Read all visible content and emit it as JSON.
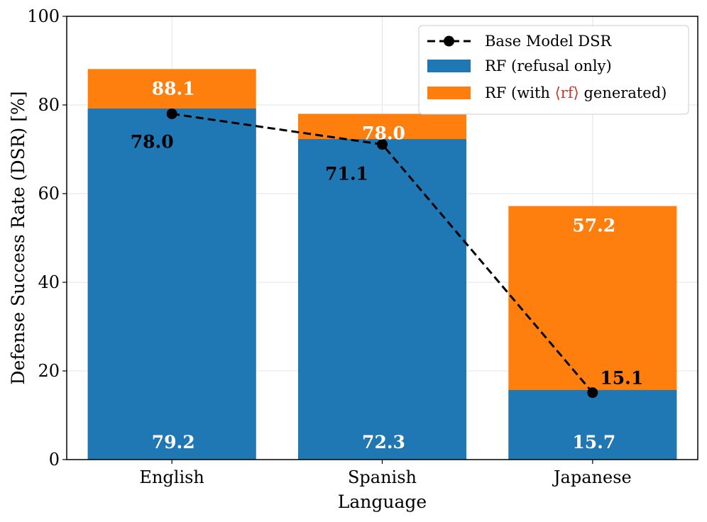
{
  "chart_data": {
    "type": "bar",
    "stacked": true,
    "title": "",
    "xlabel": "Language",
    "ylabel": "Defense Success Rate (DSR) [%]",
    "ylim": [
      0,
      100
    ],
    "yticks": [
      0,
      20,
      40,
      60,
      80,
      100
    ],
    "grid": true,
    "legend_position": "top-right",
    "categories": [
      "English",
      "Spanish",
      "Japanese"
    ],
    "series": [
      {
        "name": "RF (refusal only)",
        "kind": "bar",
        "color": "#1f77b4",
        "values": [
          79.2,
          72.3,
          15.7
        ],
        "labels": [
          "79.2",
          "72.3",
          "15.7"
        ],
        "label_color": "#ffffff"
      },
      {
        "name": "RF (with ⟨rf⟩ generated)",
        "name_parts": {
          "prefix": "RF (with ",
          "token": "⟨rf⟩",
          "suffix": " generated)",
          "token_color": "#c0392b"
        },
        "kind": "bar",
        "color": "#ff7f0e",
        "totals": [
          88.1,
          78.0,
          57.2
        ],
        "labels": [
          "88.1",
          "78.0",
          "57.2"
        ],
        "label_color": "#ffffff"
      },
      {
        "name": "Base Model DSR",
        "kind": "line",
        "style": "dashed",
        "marker": "circle",
        "color": "#000000",
        "values": [
          78.0,
          71.1,
          15.1
        ],
        "labels": [
          "78.0",
          "71.1",
          "15.1"
        ],
        "label_color": "#000000"
      }
    ]
  }
}
